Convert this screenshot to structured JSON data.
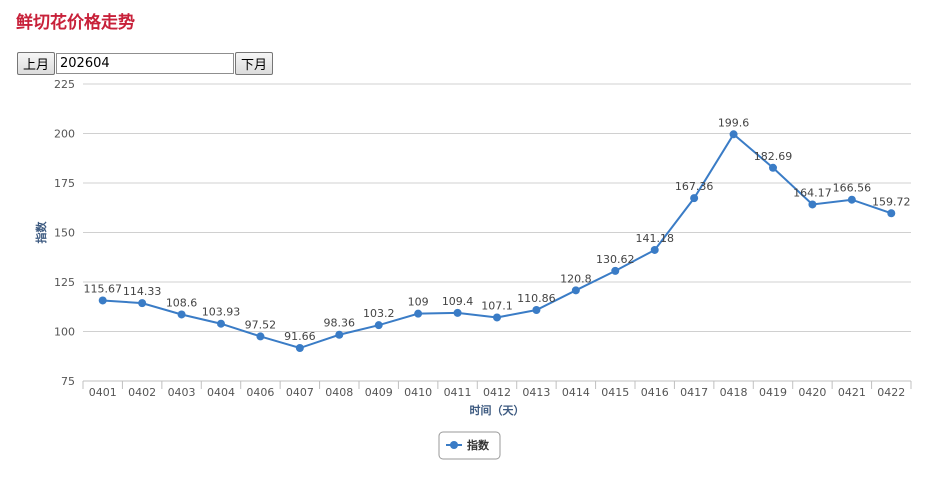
{
  "page": {
    "title": "鲜切花价格走势"
  },
  "nav": {
    "prev_label": "上月",
    "next_label": "下月",
    "month_value": "202604"
  },
  "colors": {
    "title": "#c8213a",
    "series": "#3a7cc6",
    "grid": "#d0d0d0",
    "axis_title": "#3d5a80"
  },
  "chart_data": {
    "type": "line",
    "xlabel": "时间（天）",
    "ylabel": "指数",
    "ylim": [
      75,
      225
    ],
    "yticks": [
      75,
      100,
      125,
      150,
      175,
      200,
      225
    ],
    "grid": true,
    "legend_position": "bottom-center",
    "categories": [
      "0401",
      "0402",
      "0403",
      "0404",
      "0406",
      "0407",
      "0408",
      "0409",
      "0410",
      "0411",
      "0412",
      "0413",
      "0414",
      "0415",
      "0416",
      "0417",
      "0418",
      "0419",
      "0420",
      "0421",
      "0422"
    ],
    "series": [
      {
        "name": "指数",
        "values": [
          115.67,
          114.33,
          108.6,
          103.93,
          97.52,
          91.66,
          98.36,
          103.2,
          109,
          109.4,
          107.1,
          110.86,
          120.8,
          130.62,
          141.18,
          167.36,
          199.6,
          182.69,
          164.17,
          166.56,
          159.72
        ]
      }
    ]
  }
}
